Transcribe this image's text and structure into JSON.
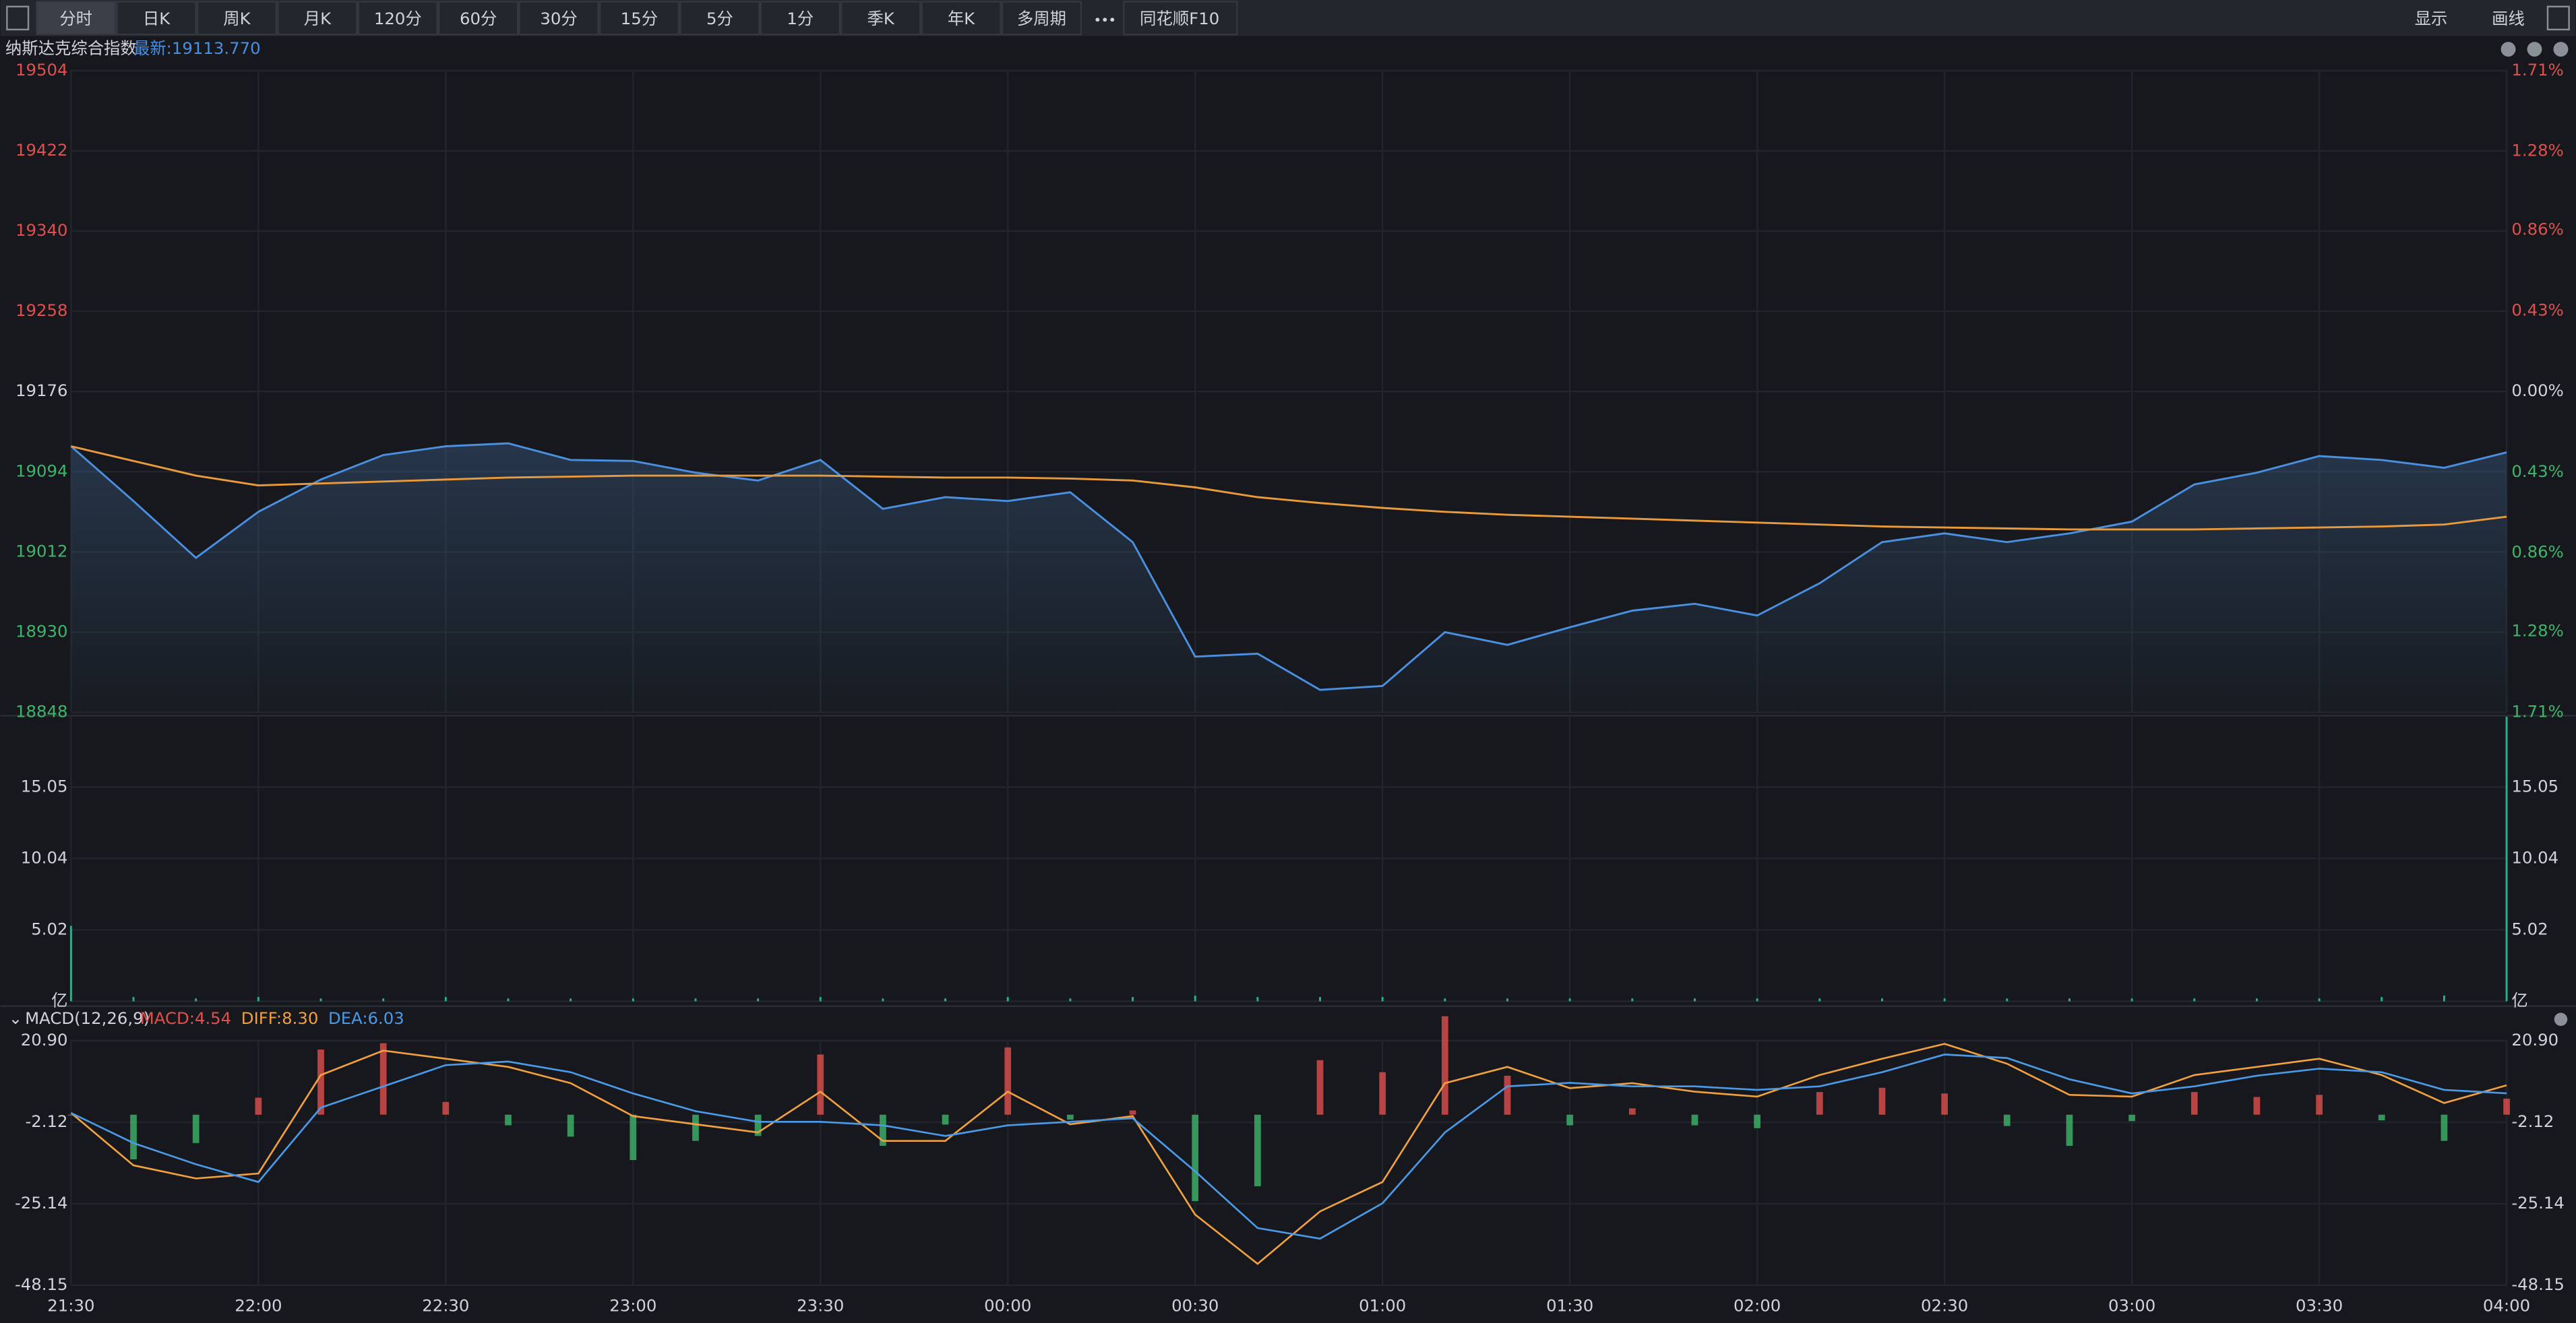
{
  "toolbar": {
    "tabs": [
      "分时",
      "日K",
      "周K",
      "月K",
      "120分",
      "60分",
      "30分",
      "15分",
      "5分",
      "1分",
      "季K",
      "年K",
      "多周期"
    ],
    "f10": "同花顺F10",
    "right": [
      "显示",
      "画线"
    ]
  },
  "header": {
    "name": "纳斯达克综合指数",
    "latest": "最新:19113.770"
  },
  "chart_data": [
    {
      "type": "line",
      "categories": [
        "21:30",
        null,
        null,
        "22:00",
        null,
        null,
        "22:30",
        null,
        null,
        "23:00",
        null,
        null,
        "23:30",
        null,
        null,
        "00:00",
        null,
        null,
        "00:30",
        null,
        null,
        "01:00",
        null,
        null,
        "01:30",
        null,
        null,
        "02:00",
        null,
        null,
        "02:30",
        null,
        null,
        "03:00",
        null,
        null,
        "03:30",
        null,
        null,
        "04:00"
      ],
      "series": [
        {
          "color": "#4a8fe0",
          "values": [
            19120,
            19064,
            19006,
            19053,
            19086,
            19111,
            19120,
            19123,
            19106,
            19105,
            19093,
            19085,
            19106,
            19056,
            19068,
            19064,
            19073,
            19022,
            18905,
            18908,
            18871,
            18875,
            18930,
            18917,
            18935,
            18952,
            18959,
            18947,
            18980,
            19022,
            19031,
            19022,
            19031,
            19043,
            19081,
            19093,
            19110,
            19106,
            19098,
            19113.77
          ]
        },
        {
          "color": "#e89a3c",
          "values": [
            19120,
            19105,
            19090,
            19080,
            19082,
            19084,
            19086,
            19088,
            19089,
            19090,
            19090,
            19090,
            19090,
            19089,
            19088,
            19088,
            19087,
            19085,
            19078,
            19068,
            19062,
            19057,
            19053,
            19050,
            19048,
            19046,
            19044,
            19042,
            19040,
            19038,
            19037,
            19036,
            19035,
            19035,
            19035,
            19036,
            19037,
            19038,
            19040,
            19048
          ]
        }
      ],
      "ylim": [
        18848,
        19504
      ],
      "yticks": [
        19504,
        19422,
        19340,
        19258,
        19176,
        19094,
        19012,
        18930,
        18848
      ],
      "y2lim": [
        -1.71,
        1.71
      ],
      "y2ticks": [
        {
          "value": 1.71,
          "label": "1.71%"
        },
        {
          "value": 1.28,
          "label": "1.28%"
        },
        {
          "value": 0.86,
          "label": "0.86%"
        },
        {
          "value": 0.43,
          "label": "0.43%"
        },
        {
          "value": 0,
          "label": "0.00%"
        },
        {
          "value": -0.43,
          "label": "0.43%"
        },
        {
          "value": -0.86,
          "label": "0.86%"
        },
        {
          "value": -1.28,
          "label": "1.28%"
        },
        {
          "value": -1.71,
          "label": "1.71%"
        }
      ]
    },
    {
      "type": "bar",
      "color": "#2fae8e",
      "values": [
        5.3,
        0.3,
        0.2,
        0.3,
        0.2,
        0.2,
        0.3,
        0.2,
        0.2,
        0.2,
        0.2,
        0.2,
        0.3,
        0.2,
        0.2,
        0.3,
        0.2,
        0.3,
        0.4,
        0.3,
        0.3,
        0.3,
        0.2,
        0.2,
        0.2,
        0.2,
        0.2,
        0.2,
        0.2,
        0.2,
        0.2,
        0.2,
        0.2,
        0.2,
        0.2,
        0.2,
        0.2,
        0.3,
        0.4,
        20
      ],
      "ylim": [
        0,
        20.07
      ],
      "yticks": [
        {
          "value": 0,
          "label": "亿"
        },
        5.02,
        10.04,
        15.05
      ]
    },
    {
      "type": "macd",
      "title": "MACD(12,26,9)",
      "series": [
        {
          "name": "MACD:4.54",
          "color": "#e0504e",
          "values": [
            0,
            -12.6,
            -8,
            4.8,
            18.4,
            20.2,
            3.6,
            -3,
            -6.2,
            -12.8,
            -7.4,
            -6,
            17,
            -8.8,
            -2.8,
            19,
            -1.4,
            1.2,
            -24.4,
            -20.2,
            15.4,
            12,
            27.8,
            11,
            -3,
            1.8,
            -3,
            -3.8,
            6.4,
            7.6,
            6,
            -3.2,
            -8.8,
            -1.8,
            6.4,
            5,
            5.6,
            -1.6,
            -7.4,
            4.54
          ]
        },
        {
          "name": "DIFF:8.30",
          "color": "#f0a040",
          "values": [
            0.5,
            -14.3,
            -18,
            -16.6,
            11.2,
            18.1,
            15.8,
            13.5,
            8.9,
            -0.4,
            -2.7,
            -5,
            6.5,
            -7.4,
            -7.4,
            6.5,
            -2.7,
            -0.4,
            -28.2,
            -42.1,
            -27.3,
            -19,
            8.9,
            13.5,
            7.5,
            8.9,
            6.5,
            5.1,
            11.2,
            15.8,
            20,
            14.4,
            5.6,
            5.1,
            11.2,
            13.5,
            15.8,
            11.2,
            3.3,
            8.3
          ]
        },
        {
          "name": "DEA:6.03",
          "color": "#4a9ae8",
          "values": [
            0.5,
            -8,
            -14,
            -19,
            2,
            8,
            14,
            15,
            12,
            6,
            1,
            -2,
            -2,
            -3,
            -6,
            -3,
            -2,
            -1,
            -16,
            -32,
            -35,
            -25,
            -5,
            8,
            9,
            8,
            8,
            7,
            8,
            12,
            17,
            16,
            10,
            6,
            8,
            11,
            13,
            12,
            7,
            6.03
          ]
        }
      ],
      "ylim": [
        -48.15,
        20.9
      ],
      "yticks": [
        {
          "value": 20.9,
          "label": "20.90"
        },
        -2.12,
        -25.14,
        -48.15
      ]
    }
  ]
}
